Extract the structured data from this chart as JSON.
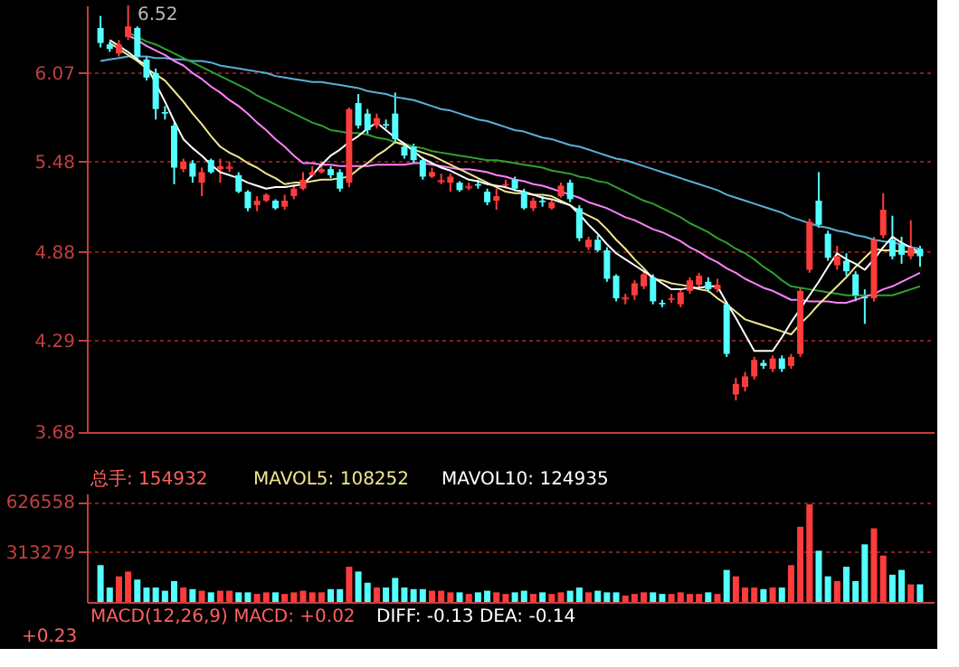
{
  "chart_data": [
    {
      "type": "candlestick",
      "categories": [
        null,
        null,
        null,
        null,
        null,
        null,
        null,
        null,
        null,
        null,
        null,
        null,
        null,
        null,
        null,
        null,
        null,
        null,
        null,
        null,
        null,
        null,
        null,
        null,
        null,
        null,
        null,
        null,
        null,
        null,
        null,
        null,
        null,
        null,
        null,
        null,
        null,
        null,
        null,
        null,
        null,
        null,
        null,
        null,
        null,
        null,
        null,
        null,
        null,
        null,
        null,
        null,
        null,
        null,
        null,
        null,
        null,
        null,
        null,
        null,
        null,
        null,
        null,
        null,
        null,
        null,
        null,
        null,
        null,
        null,
        null,
        null,
        null,
        null,
        null,
        null,
        null,
        null,
        null,
        null,
        null,
        null,
        null,
        null,
        null,
        null,
        null,
        null,
        null,
        null
      ],
      "ohlc": [
        [
          6.37,
          6.45,
          6.24,
          6.27
        ],
        [
          6.26,
          6.28,
          6.21,
          6.23
        ],
        [
          6.2,
          6.29,
          6.18,
          6.26
        ],
        [
          6.31,
          6.52,
          6.29,
          6.38
        ],
        [
          6.37,
          6.38,
          6.16,
          6.18
        ],
        [
          6.16,
          6.18,
          6.02,
          6.04
        ],
        [
          6.07,
          6.1,
          5.76,
          5.83
        ],
        [
          5.81,
          5.85,
          5.76,
          5.8
        ],
        [
          5.72,
          5.74,
          5.33,
          5.44
        ],
        [
          5.43,
          5.5,
          5.41,
          5.48
        ],
        [
          5.47,
          5.49,
          5.34,
          5.38
        ],
        [
          5.34,
          5.44,
          5.25,
          5.41
        ],
        [
          5.49,
          5.5,
          5.4,
          5.41
        ],
        [
          5.43,
          5.5,
          5.34,
          5.45
        ],
        [
          5.44,
          5.48,
          5.41,
          5.44
        ],
        [
          5.39,
          5.41,
          5.27,
          5.28
        ],
        [
          5.28,
          5.29,
          5.15,
          5.17
        ],
        [
          5.19,
          5.25,
          5.15,
          5.22
        ],
        [
          5.22,
          5.27,
          5.21,
          5.26
        ],
        [
          5.22,
          5.23,
          5.16,
          5.17
        ],
        [
          5.18,
          5.26,
          5.16,
          5.22
        ],
        [
          5.25,
          5.33,
          5.23,
          5.3
        ],
        [
          5.3,
          5.41,
          5.29,
          5.36
        ],
        [
          5.39,
          5.45,
          5.38,
          5.41
        ],
        [
          5.41,
          5.48,
          5.4,
          5.43
        ],
        [
          5.43,
          5.45,
          5.37,
          5.39
        ],
        [
          5.41,
          5.43,
          5.28,
          5.3
        ],
        [
          5.34,
          5.84,
          5.31,
          5.83
        ],
        [
          5.87,
          5.93,
          5.7,
          5.72
        ],
        [
          5.8,
          5.83,
          5.66,
          5.69
        ],
        [
          5.72,
          5.8,
          5.7,
          5.77
        ],
        [
          5.73,
          5.76,
          5.7,
          5.72
        ],
        [
          5.8,
          5.94,
          5.61,
          5.63
        ],
        [
          5.58,
          5.6,
          5.5,
          5.52
        ],
        [
          5.58,
          5.6,
          5.47,
          5.49
        ],
        [
          5.49,
          5.51,
          5.36,
          5.38
        ],
        [
          5.38,
          5.44,
          5.37,
          5.41
        ],
        [
          5.35,
          5.4,
          5.33,
          5.35
        ],
        [
          5.34,
          5.4,
          5.28,
          5.38
        ],
        [
          5.34,
          5.35,
          5.28,
          5.29
        ],
        [
          5.31,
          5.34,
          5.29,
          5.31
        ],
        [
          5.33,
          5.36,
          5.3,
          5.32
        ],
        [
          5.28,
          5.3,
          5.19,
          5.21
        ],
        [
          5.22,
          5.3,
          5.16,
          5.25
        ],
        [
          5.32,
          5.36,
          5.3,
          5.33
        ],
        [
          5.36,
          5.38,
          5.29,
          5.3
        ],
        [
          5.28,
          5.3,
          5.16,
          5.17
        ],
        [
          5.17,
          5.24,
          5.15,
          5.22
        ],
        [
          5.22,
          5.25,
          5.18,
          5.21
        ],
        [
          5.17,
          5.23,
          5.16,
          5.21
        ],
        [
          5.25,
          5.34,
          5.24,
          5.32
        ],
        [
          5.34,
          5.36,
          5.21,
          5.23
        ],
        [
          5.17,
          5.19,
          4.95,
          4.97
        ],
        [
          4.91,
          4.98,
          4.89,
          4.96
        ],
        [
          4.96,
          4.99,
          4.88,
          4.89
        ],
        [
          4.89,
          4.91,
          4.68,
          4.7
        ],
        [
          4.72,
          4.73,
          4.55,
          4.57
        ],
        [
          4.57,
          4.6,
          4.53,
          4.57
        ],
        [
          4.59,
          4.69,
          4.56,
          4.67
        ],
        [
          4.65,
          4.75,
          4.63,
          4.73
        ],
        [
          4.71,
          4.73,
          4.53,
          4.55
        ],
        [
          4.54,
          4.56,
          4.51,
          4.53
        ],
        [
          4.56,
          4.6,
          4.54,
          4.57
        ],
        [
          4.53,
          4.63,
          4.51,
          4.61
        ],
        [
          4.62,
          4.71,
          4.6,
          4.69
        ],
        [
          4.66,
          4.74,
          4.64,
          4.72
        ],
        [
          4.68,
          4.71,
          4.61,
          4.63
        ],
        [
          4.63,
          4.7,
          4.61,
          4.66
        ],
        [
          4.53,
          4.55,
          4.18,
          4.2
        ],
        [
          3.93,
          4.04,
          3.89,
          4.0
        ],
        [
          3.98,
          4.08,
          3.95,
          4.05
        ],
        [
          4.05,
          4.18,
          4.03,
          4.16
        ],
        [
          4.14,
          4.16,
          4.1,
          4.12
        ],
        [
          4.1,
          4.19,
          4.08,
          4.17
        ],
        [
          4.17,
          4.19,
          4.08,
          4.1
        ],
        [
          4.12,
          4.2,
          4.1,
          4.18
        ],
        [
          4.2,
          4.64,
          4.18,
          4.62
        ],
        [
          4.76,
          5.1,
          4.74,
          5.08
        ],
        [
          5.22,
          5.41,
          5.04,
          5.06
        ],
        [
          5.0,
          5.02,
          4.82,
          4.84
        ],
        [
          4.79,
          4.92,
          4.76,
          4.85
        ],
        [
          4.82,
          4.87,
          4.72,
          4.75
        ],
        [
          4.73,
          4.75,
          4.55,
          4.59
        ],
        [
          4.58,
          4.63,
          4.4,
          4.57
        ],
        [
          4.57,
          4.98,
          4.55,
          4.96
        ],
        [
          4.99,
          5.27,
          4.97,
          5.16
        ],
        [
          4.96,
          5.12,
          4.83,
          4.85
        ],
        [
          4.93,
          4.98,
          4.8,
          4.86
        ],
        [
          4.85,
          5.09,
          4.83,
          4.91
        ],
        [
          4.9,
          4.92,
          4.78,
          4.85
        ]
      ],
      "colors": [
        "#54ffff",
        "#54ffff",
        "#ff3c3c",
        "#ff3c3c",
        "#54ffff",
        "#54ffff",
        "#54ffff",
        "#54ffff",
        "#54ffff",
        "#ff3c3c",
        "#54ffff",
        "#ff3c3c",
        "#54ffff",
        "#ff3c3c",
        "#ff3c3c",
        "#54ffff",
        "#54ffff",
        "#ff3c3c",
        "#ff3c3c",
        "#54ffff",
        "#ff3c3c",
        "#ff3c3c",
        "#ff3c3c",
        "#ff3c3c",
        "#ff3c3c",
        "#54ffff",
        "#54ffff",
        "#ff3c3c",
        "#54ffff",
        "#54ffff",
        "#ff3c3c",
        "#54ffff",
        "#54ffff",
        "#54ffff",
        "#54ffff",
        "#54ffff",
        "#ff3c3c",
        "#ff3c3c",
        "#ff3c3c",
        "#54ffff",
        "#ff3c3c",
        "#54ffff",
        "#54ffff",
        "#ff3c3c",
        "#ff3c3c",
        "#54ffff",
        "#54ffff",
        "#ff3c3c",
        "#54ffff",
        "#ff3c3c",
        "#ff3c3c",
        "#54ffff",
        "#54ffff",
        "#ff3c3c",
        "#54ffff",
        "#54ffff",
        "#54ffff",
        "#ff3c3c",
        "#ff3c3c",
        "#ff3c3c",
        "#54ffff",
        "#54ffff",
        "#ff3c3c",
        "#ff3c3c",
        "#ff3c3c",
        "#ff3c3c",
        "#54ffff",
        "#ff3c3c",
        "#54ffff",
        "#ff3c3c",
        "#ff3c3c",
        "#ff3c3c",
        "#54ffff",
        "#ff3c3c",
        "#54ffff",
        "#ff3c3c",
        "#ff3c3c",
        "#ff3c3c",
        "#54ffff",
        "#54ffff",
        "#ff3c3c",
        "#54ffff",
        "#54ffff",
        "#54ffff",
        "#ff3c3c",
        "#ff3c3c",
        "#54ffff",
        "#54ffff",
        "#ff3c3c",
        "#54ffff"
      ],
      "series": [
        {
          "type": "line",
          "color": "#5ab0d8",
          "values": [
            6.15,
            6.16,
            6.17,
            6.18,
            6.18,
            6.18,
            6.17,
            6.17,
            6.16,
            6.16,
            6.15,
            6.15,
            6.14,
            6.12,
            6.11,
            6.1,
            6.09,
            6.08,
            6.07,
            6.05,
            6.04,
            6.03,
            6.02,
            6.01,
            6.01,
            6.0,
            5.99,
            5.98,
            5.97,
            5.95,
            5.94,
            5.93,
            5.91,
            5.9,
            5.89,
            5.87,
            5.85,
            5.83,
            5.82,
            5.8,
            5.78,
            5.76,
            5.75,
            5.73,
            5.71,
            5.69,
            5.68,
            5.66,
            5.64,
            5.63,
            5.61,
            5.59,
            5.58,
            5.56,
            5.54,
            5.52,
            5.5,
            5.49,
            5.47,
            5.45,
            5.43,
            5.41,
            5.39,
            5.37,
            5.35,
            5.33,
            5.31,
            5.29,
            5.26,
            5.24,
            5.22,
            5.2,
            5.18,
            5.16,
            5.14,
            5.11,
            5.09,
            5.07,
            5.05,
            5.04,
            5.02,
            5.01,
            4.99,
            4.98,
            4.96,
            4.95,
            4.94,
            4.93,
            4.91,
            4.9
          ]
        },
        {
          "type": "line",
          "color": "#2f9f2f",
          "values": [
            null,
            null,
            null,
            6.34,
            6.31,
            6.28,
            6.26,
            6.23,
            6.2,
            6.17,
            6.14,
            6.11,
            6.08,
            6.05,
            6.02,
            5.99,
            5.96,
            5.92,
            5.89,
            5.86,
            5.83,
            5.8,
            5.77,
            5.74,
            5.72,
            5.69,
            5.68,
            5.67,
            5.67,
            5.66,
            5.64,
            5.63,
            5.61,
            5.6,
            5.58,
            5.57,
            5.55,
            5.54,
            5.53,
            5.52,
            5.51,
            5.5,
            5.49,
            5.49,
            5.48,
            5.47,
            5.46,
            5.45,
            5.44,
            5.42,
            5.41,
            5.4,
            5.38,
            5.37,
            5.35,
            5.34,
            5.31,
            5.28,
            5.25,
            5.22,
            5.2,
            5.17,
            5.14,
            5.11,
            5.07,
            5.04,
            5.01,
            4.97,
            4.94,
            4.9,
            4.87,
            4.83,
            4.78,
            4.74,
            4.69,
            4.65,
            4.64,
            4.63,
            4.62,
            4.61,
            4.6,
            4.59,
            4.59,
            4.59,
            4.59,
            4.59,
            4.59,
            4.61,
            4.63,
            4.65
          ]
        },
        {
          "type": "line",
          "color": "#ff80ff",
          "values": [
            null,
            null,
            null,
            6.32,
            6.29,
            6.25,
            6.22,
            6.19,
            6.15,
            6.12,
            6.07,
            6.03,
            5.98,
            5.94,
            5.89,
            5.85,
            5.8,
            5.74,
            5.69,
            5.63,
            5.58,
            5.52,
            5.47,
            5.47,
            5.46,
            5.46,
            5.45,
            5.45,
            5.45,
            5.45,
            5.46,
            5.46,
            5.46,
            5.46,
            5.47,
            5.47,
            5.46,
            5.45,
            5.44,
            5.43,
            5.43,
            5.42,
            5.41,
            5.39,
            5.38,
            5.36,
            5.35,
            5.33,
            5.32,
            5.3,
            5.28,
            5.26,
            5.24,
            5.21,
            5.19,
            5.17,
            5.14,
            5.11,
            5.09,
            5.06,
            5.03,
            5.01,
            4.98,
            4.95,
            4.91,
            4.88,
            4.84,
            4.81,
            4.77,
            4.74,
            4.7,
            4.67,
            4.64,
            4.62,
            4.59,
            4.56,
            4.56,
            4.55,
            4.55,
            4.55,
            4.54,
            4.54,
            4.56,
            4.58,
            4.6,
            4.63,
            4.65,
            4.68,
            4.71,
            4.74
          ]
        },
        {
          "type": "line",
          "color": "#f0e68c",
          "values": [
            null,
            6.27,
            6.23,
            6.19,
            6.15,
            6.1,
            6.06,
            6.02,
            5.95,
            5.88,
            5.8,
            5.73,
            5.65,
            5.58,
            5.54,
            5.51,
            5.47,
            5.44,
            5.4,
            5.37,
            5.33,
            5.34,
            5.34,
            5.35,
            5.36,
            5.36,
            5.37,
            5.38,
            5.43,
            5.47,
            5.52,
            5.56,
            5.61,
            5.59,
            5.56,
            5.54,
            5.52,
            5.49,
            5.46,
            5.43,
            5.4,
            5.37,
            5.34,
            5.31,
            5.28,
            5.27,
            5.27,
            5.26,
            5.26,
            5.25,
            5.22,
            5.19,
            5.15,
            5.12,
            5.09,
            5.03,
            4.96,
            4.9,
            4.83,
            4.77,
            4.7,
            4.69,
            4.67,
            4.66,
            4.65,
            4.63,
            4.62,
            4.57,
            4.53,
            4.48,
            4.43,
            4.41,
            4.39,
            4.37,
            4.35,
            4.33,
            4.4,
            4.46,
            4.53,
            4.59,
            4.65,
            4.71,
            4.78,
            4.84,
            4.9,
            4.89,
            4.89,
            4.88,
            4.88,
            4.87
          ]
        },
        {
          "type": "line",
          "color": "#ffffff",
          "values": [
            null,
            6.29,
            6.25,
            6.21,
            6.16,
            6.12,
            6.0,
            5.88,
            5.75,
            5.63,
            5.57,
            5.52,
            5.46,
            5.41,
            5.39,
            5.37,
            5.34,
            5.32,
            5.3,
            5.31,
            5.31,
            5.32,
            5.33,
            5.39,
            5.46,
            5.52,
            5.56,
            5.61,
            5.65,
            5.7,
            5.74,
            5.69,
            5.64,
            5.6,
            5.55,
            5.5,
            5.47,
            5.44,
            5.42,
            5.39,
            5.36,
            5.35,
            5.33,
            5.32,
            5.31,
            5.29,
            5.28,
            5.26,
            5.24,
            5.23,
            5.21,
            5.19,
            5.13,
            5.06,
            5.0,
            4.93,
            4.87,
            4.83,
            4.79,
            4.75,
            4.71,
            4.67,
            4.63,
            4.63,
            4.64,
            4.64,
            4.65,
            4.65,
            4.54,
            4.44,
            4.33,
            4.22,
            4.22,
            4.22,
            4.31,
            4.41,
            4.5,
            4.59,
            4.68,
            4.78,
            4.87,
            4.83,
            4.8,
            4.76,
            4.83,
            4.91,
            4.98,
            4.94,
            4.91,
            4.87
          ]
        }
      ],
      "ylim": [
        3.68,
        6.52
      ],
      "yticks": [
        3.68,
        4.29,
        4.88,
        5.48,
        6.07
      ],
      "grid": "y",
      "tick_labels": "y",
      "annotations": [
        "6.52"
      ]
    },
    {
      "type": "bar",
      "categories": [
        null,
        null,
        null,
        null,
        null,
        null,
        null,
        null,
        null,
        null,
        null,
        null,
        null,
        null,
        null,
        null,
        null,
        null,
        null,
        null,
        null,
        null,
        null,
        null,
        null,
        null,
        null,
        null,
        null,
        null,
        null,
        null,
        null,
        null,
        null,
        null,
        null,
        null,
        null,
        null,
        null,
        null,
        null,
        null,
        null,
        null,
        null,
        null,
        null,
        null,
        null,
        null,
        null,
        null,
        null,
        null,
        null,
        null,
        null,
        null,
        null,
        null,
        null,
        null,
        null,
        null,
        null,
        null,
        null,
        null,
        null,
        null,
        null,
        null,
        null,
        null,
        null,
        null,
        null,
        null,
        null,
        null,
        null,
        null,
        null,
        null,
        null,
        null,
        null,
        null
      ],
      "values": [
        230000,
        90000,
        160000,
        190000,
        140000,
        90000,
        90000,
        70000,
        130000,
        90000,
        80000,
        70000,
        60000,
        70000,
        70000,
        60000,
        60000,
        50000,
        60000,
        60000,
        50000,
        60000,
        70000,
        60000,
        60000,
        80000,
        80000,
        220000,
        190000,
        120000,
        90000,
        90000,
        150000,
        90000,
        80000,
        80000,
        70000,
        70000,
        60000,
        60000,
        50000,
        60000,
        70000,
        60000,
        50000,
        60000,
        70000,
        50000,
        60000,
        50000,
        60000,
        70000,
        90000,
        60000,
        70000,
        60000,
        60000,
        40000,
        50000,
        60000,
        60000,
        50000,
        50000,
        60000,
        50000,
        50000,
        60000,
        50000,
        200000,
        160000,
        90000,
        90000,
        80000,
        90000,
        90000,
        230000,
        470000,
        610000,
        320000,
        160000,
        130000,
        220000,
        130000,
        360000,
        460000,
        290000,
        170000,
        200000,
        110000,
        110000
      ],
      "colors": [
        "#54ffff",
        "#54ffff",
        "#ff3c3c",
        "#ff3c3c",
        "#54ffff",
        "#54ffff",
        "#54ffff",
        "#54ffff",
        "#54ffff",
        "#ff3c3c",
        "#54ffff",
        "#ff3c3c",
        "#54ffff",
        "#ff3c3c",
        "#ff3c3c",
        "#54ffff",
        "#54ffff",
        "#ff3c3c",
        "#ff3c3c",
        "#54ffff",
        "#ff3c3c",
        "#ff3c3c",
        "#ff3c3c",
        "#ff3c3c",
        "#ff3c3c",
        "#54ffff",
        "#54ffff",
        "#ff3c3c",
        "#54ffff",
        "#54ffff",
        "#ff3c3c",
        "#54ffff",
        "#54ffff",
        "#54ffff",
        "#54ffff",
        "#54ffff",
        "#ff3c3c",
        "#ff3c3c",
        "#ff3c3c",
        "#54ffff",
        "#ff3c3c",
        "#54ffff",
        "#54ffff",
        "#ff3c3c",
        "#ff3c3c",
        "#54ffff",
        "#54ffff",
        "#ff3c3c",
        "#54ffff",
        "#ff3c3c",
        "#ff3c3c",
        "#54ffff",
        "#54ffff",
        "#ff3c3c",
        "#54ffff",
        "#54ffff",
        "#54ffff",
        "#ff3c3c",
        "#ff3c3c",
        "#ff3c3c",
        "#54ffff",
        "#54ffff",
        "#ff3c3c",
        "#ff3c3c",
        "#ff3c3c",
        "#ff3c3c",
        "#54ffff",
        "#ff3c3c",
        "#54ffff",
        "#ff3c3c",
        "#ff3c3c",
        "#ff3c3c",
        "#54ffff",
        "#ff3c3c",
        "#54ffff",
        "#ff3c3c",
        "#ff3c3c",
        "#ff3c3c",
        "#54ffff",
        "#54ffff",
        "#ff3c3c",
        "#54ffff",
        "#54ffff",
        "#54ffff",
        "#ff3c3c",
        "#ff3c3c",
        "#54ffff",
        "#54ffff",
        "#ff3c3c",
        "#54ffff"
      ],
      "ylim": [
        0,
        678000
      ],
      "yticks": [
        313279,
        626558
      ],
      "grid": "y",
      "tick_labels": "y",
      "annotations": [
        "总手: 154932",
        "MAVOL5: 108252",
        "MAVOL10: 124935",
        "MACD(12,26,9) MACD: +0.02",
        "DIFF: -0.13 DEA: -0.14",
        "+0.23"
      ]
    }
  ]
}
